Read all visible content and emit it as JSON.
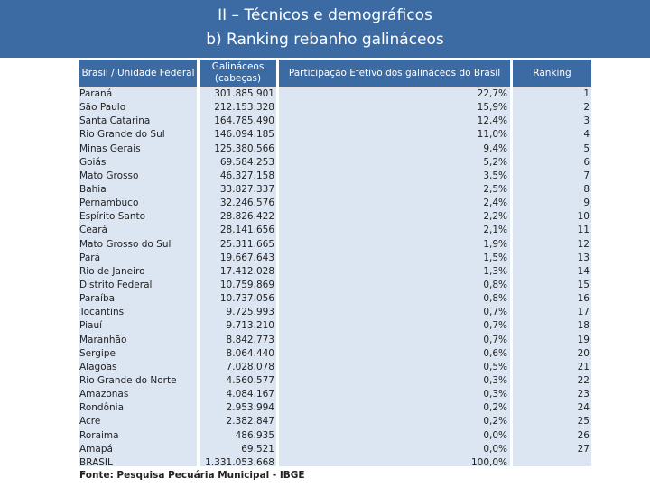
{
  "title": {
    "line1": "II – Técnicos e demográficos",
    "line2": "b) Ranking rebanho galináceos"
  },
  "table": {
    "headers": {
      "unit": "Brasil / Unidade Federal",
      "count_line1": "Galináceos",
      "count_line2": "(cabeças)",
      "share": "Participação Efetivo dos galináceos do Brasil",
      "rank": "Ranking"
    },
    "rows": [
      {
        "name": "Paraná",
        "count": "301.885.901",
        "share": "22,7%",
        "rank": "1"
      },
      {
        "name": "São Paulo",
        "count": "212.153.328",
        "share": "15,9%",
        "rank": "2"
      },
      {
        "name": "Santa Catarina",
        "count": "164.785.490",
        "share": "12,4%",
        "rank": "3"
      },
      {
        "name": "Rio Grande do Sul",
        "count": "146.094.185",
        "share": "11,0%",
        "rank": "4"
      },
      {
        "name": "Minas Gerais",
        "count": "125.380.566",
        "share": "9,4%",
        "rank": "5"
      },
      {
        "name": "Goiás",
        "count": "69.584.253",
        "share": "5,2%",
        "rank": "6"
      },
      {
        "name": "Mato Grosso",
        "count": "46.327.158",
        "share": "3,5%",
        "rank": "7"
      },
      {
        "name": "Bahia",
        "count": "33.827.337",
        "share": "2,5%",
        "rank": "8"
      },
      {
        "name": "Pernambuco",
        "count": "32.246.576",
        "share": "2,4%",
        "rank": "9"
      },
      {
        "name": "Espírito Santo",
        "count": "28.826.422",
        "share": "2,2%",
        "rank": "10"
      },
      {
        "name": "Ceará",
        "count": "28.141.656",
        "share": "2,1%",
        "rank": "11"
      },
      {
        "name": "Mato Grosso do Sul",
        "count": "25.311.665",
        "share": "1,9%",
        "rank": "12"
      },
      {
        "name": "Pará",
        "count": "19.667.643",
        "share": "1,5%",
        "rank": "13"
      },
      {
        "name": "Rio de Janeiro",
        "count": "17.412.028",
        "share": "1,3%",
        "rank": "14"
      },
      {
        "name": "Distrito Federal",
        "count": "10.759.869",
        "share": "0,8%",
        "rank": "15"
      },
      {
        "name": "Paraíba",
        "count": "10.737.056",
        "share": "0,8%",
        "rank": "16"
      },
      {
        "name": "Tocantins",
        "count": "9.725.993",
        "share": "0,7%",
        "rank": "17"
      },
      {
        "name": "Piauí",
        "count": "9.713.210",
        "share": "0,7%",
        "rank": "18"
      },
      {
        "name": "Maranhão",
        "count": "8.842.773",
        "share": "0,7%",
        "rank": "19"
      },
      {
        "name": "Sergipe",
        "count": "8.064.440",
        "share": "0,6%",
        "rank": "20"
      },
      {
        "name": "Alagoas",
        "count": "7.028.078",
        "share": "0,5%",
        "rank": "21"
      },
      {
        "name": "Rio Grande do Norte",
        "count": "4.560.577",
        "share": "0,3%",
        "rank": "22"
      },
      {
        "name": "Amazonas",
        "count": "4.084.167",
        "share": "0,3%",
        "rank": "23"
      },
      {
        "name": "Rondônia",
        "count": "2.953.994",
        "share": "0,2%",
        "rank": "24"
      },
      {
        "name": "Acre",
        "count": "2.382.847",
        "share": "0,2%",
        "rank": "25"
      },
      {
        "name": "Roraima",
        "count": "486.935",
        "share": "0,0%",
        "rank": "26"
      },
      {
        "name": "Amapá",
        "count": "69.521",
        "share": "0,0%",
        "rank": "27"
      },
      {
        "name": "BRASIL",
        "count": "1.331.053.668",
        "share": "100,0%",
        "rank": ""
      }
    ]
  },
  "footer": "Fonte: Pesquisa Pecuária Municipal - IBGE",
  "colors": {
    "banner": "#3c6ba3",
    "column_fill": "#dce6f2"
  }
}
